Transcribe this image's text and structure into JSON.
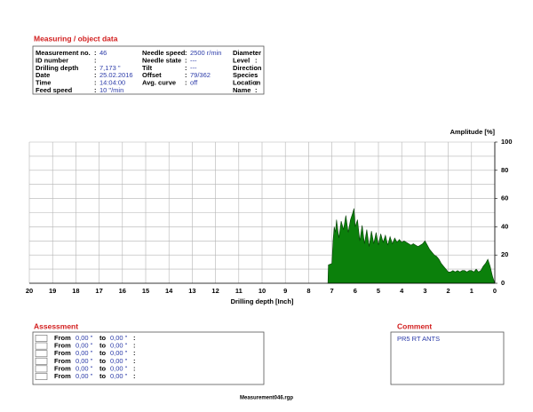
{
  "object_data": {
    "title": "Measuring / object data",
    "separator": ":",
    "columns": [
      [
        {
          "label": "Measurement no.",
          "value": "46"
        },
        {
          "label": "ID number"
        },
        {
          "label": "Drilling depth",
          "value": "7,173 \""
        },
        {
          "label": "Date",
          "value": "25.02.2016"
        },
        {
          "label": "Time",
          "value": "14:04:00"
        },
        {
          "label": "Feed speed",
          "value": "10 \"/min"
        }
      ],
      [
        {
          "label": "Needle speed",
          "value": "2500 r/min"
        },
        {
          "label": "Needle state",
          "value": "---"
        },
        {
          "label": "Tilt",
          "value": "---"
        },
        {
          "label": "Offset",
          "value": "79/362"
        },
        {
          "label": "Avg. curve",
          "value": "off"
        }
      ],
      [
        {
          "label": "Diameter"
        },
        {
          "label": "Level"
        },
        {
          "label": "Direction"
        },
        {
          "label": "Species"
        },
        {
          "label": "Location"
        },
        {
          "label": "Name"
        }
      ]
    ]
  },
  "chart_data": {
    "type": "area",
    "x_label": "Drilling depth [Inch]",
    "y_label": "Amplitude [%]",
    "color": "#0b800b",
    "xlim": [
      20,
      0
    ],
    "ylim": [
      0,
      100
    ],
    "xticks": [
      20,
      19,
      18,
      17,
      16,
      15,
      14,
      13,
      12,
      11,
      10,
      9,
      8,
      7,
      6,
      5,
      4,
      3,
      2,
      1,
      0
    ],
    "yticks": [
      0,
      20,
      40,
      60,
      80,
      100
    ],
    "ygrid": [
      0,
      10,
      20,
      30,
      40,
      50,
      60,
      70,
      80,
      90,
      100
    ],
    "x": [
      7.17,
      7.15,
      7.0,
      6.95,
      6.9,
      6.85,
      6.8,
      6.7,
      6.6,
      6.5,
      6.4,
      6.3,
      6.2,
      6.1,
      6.05,
      6.0,
      5.9,
      5.8,
      5.7,
      5.6,
      5.5,
      5.4,
      5.3,
      5.2,
      5.1,
      5.0,
      4.9,
      4.8,
      4.7,
      4.6,
      4.5,
      4.4,
      4.3,
      4.2,
      4.1,
      4.0,
      3.9,
      3.8,
      3.7,
      3.6,
      3.5,
      3.4,
      3.3,
      3.2,
      3.1,
      3.0,
      2.9,
      2.8,
      2.7,
      2.6,
      2.5,
      2.4,
      2.3,
      2.2,
      2.1,
      2.0,
      1.9,
      1.8,
      1.7,
      1.6,
      1.5,
      1.4,
      1.3,
      1.2,
      1.1,
      1.0,
      0.9,
      0.8,
      0.7,
      0.6,
      0.5,
      0.4,
      0.3,
      0.2,
      0.1,
      0.0
    ],
    "values": [
      0,
      13,
      14,
      30,
      40,
      36,
      45,
      32,
      44,
      38,
      48,
      36,
      45,
      50,
      53,
      40,
      45,
      30,
      41,
      28,
      38,
      26,
      37,
      28,
      36,
      27,
      35,
      29,
      34,
      27,
      33,
      28,
      32,
      29,
      31,
      29,
      30,
      29,
      28,
      27,
      28,
      27,
      26,
      27,
      28,
      30,
      27,
      24,
      22,
      20,
      19,
      17,
      14,
      12,
      10,
      8,
      8,
      9,
      8,
      9,
      8,
      9,
      9,
      8,
      9,
      9,
      8,
      10,
      8,
      9,
      12,
      14,
      17,
      12,
      5,
      0
    ]
  },
  "assessment": {
    "title": "Assessment",
    "from_label": "From",
    "to_label": "to",
    "separator": ":",
    "rows": [
      {
        "from": "0,00 \"",
        "to": "0,00 \""
      },
      {
        "from": "0,00 \"",
        "to": "0,00 \""
      },
      {
        "from": "0,00 \"",
        "to": "0,00 \""
      },
      {
        "from": "0,00 \"",
        "to": "0,00 \""
      },
      {
        "from": "0,00 \"",
        "to": "0,00 \""
      },
      {
        "from": "0,00 \"",
        "to": "0,00 \""
      }
    ]
  },
  "comment": {
    "title": "Comment",
    "text": "PR5 RT ANTS"
  },
  "footer": "Measurement046.rgp"
}
